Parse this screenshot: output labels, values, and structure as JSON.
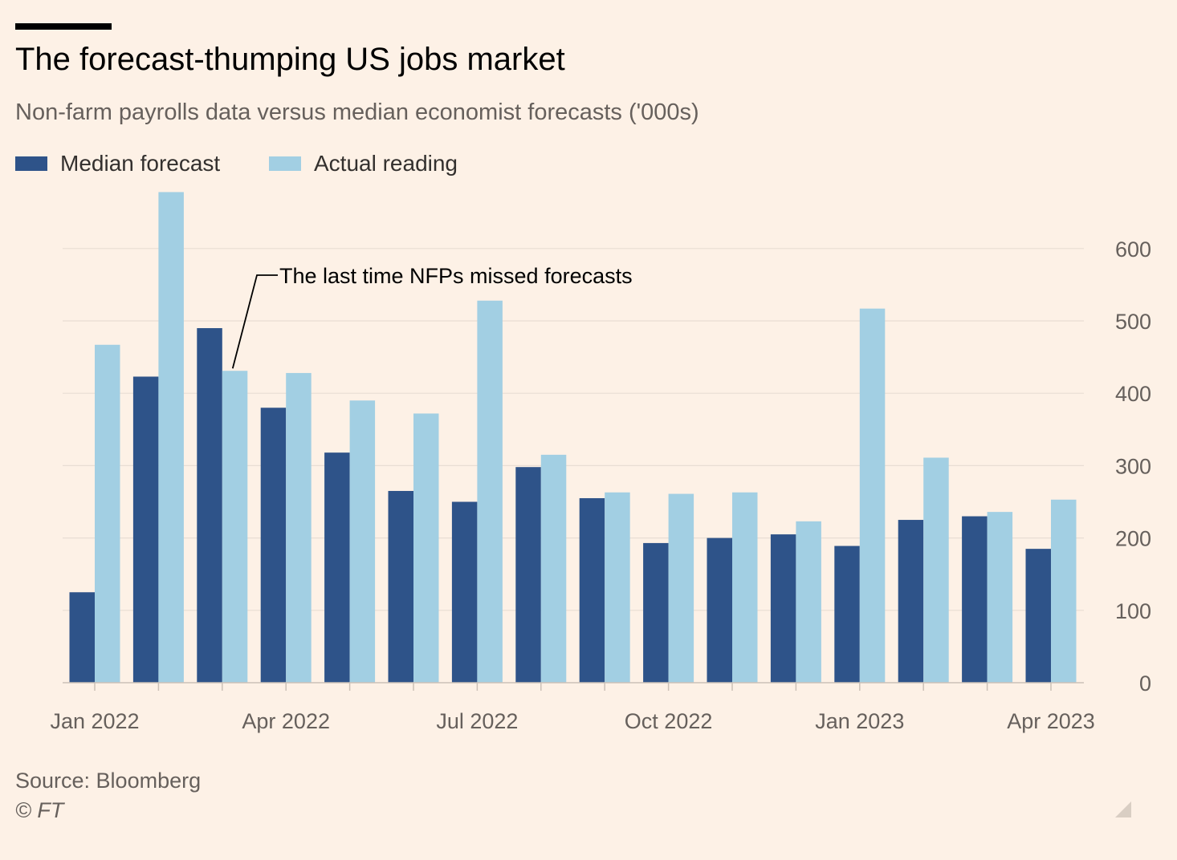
{
  "header": {
    "title": "The forecast-thumping US jobs market",
    "subtitle": "Non-farm payrolls data versus median economist forecasts ('000s)"
  },
  "legend": {
    "items": [
      {
        "label": "Median forecast",
        "color": "#2e5389"
      },
      {
        "label": "Actual reading",
        "color": "#a2cfe3"
      }
    ]
  },
  "footer": {
    "source": "Source: Bloomberg",
    "copyright": "© FT"
  },
  "chart_data": {
    "type": "bar",
    "title": "The forecast-thumping US jobs market",
    "subtitle": "Non-farm payrolls data versus median economist forecasts ('000s)",
    "categories": [
      "Jan 2022",
      "Feb 2022",
      "Mar 2022",
      "Apr 2022",
      "May 2022",
      "Jun 2022",
      "Jul 2022",
      "Aug 2022",
      "Sep 2022",
      "Oct 2022",
      "Nov 2022",
      "Dec 2022",
      "Jan 2023",
      "Feb 2023",
      "Mar 2023",
      "Apr 2023"
    ],
    "series": [
      {
        "name": "Median forecast",
        "color": "#2e5389",
        "values": [
          125,
          423,
          490,
          380,
          318,
          265,
          250,
          298,
          255,
          193,
          200,
          205,
          189,
          225,
          230,
          185
        ]
      },
      {
        "name": "Actual reading",
        "color": "#a2cfe3",
        "values": [
          467,
          678,
          431,
          428,
          390,
          372,
          528,
          315,
          263,
          261,
          263,
          223,
          517,
          311,
          236,
          253
        ]
      }
    ],
    "x_tick_labels": [
      "Jan 2022",
      "Apr 2022",
      "Jul 2022",
      "Oct 2022",
      "Jan 2023",
      "Apr 2023"
    ],
    "y_ticks": [
      0,
      100,
      200,
      300,
      400,
      500,
      600
    ],
    "ylim": [
      0,
      680
    ],
    "xlabel": "",
    "ylabel": "",
    "y_axis_side": "right",
    "grid": true,
    "legend_position": "top-left",
    "annotations": [
      {
        "text": "The last time NFPs missed forecasts",
        "category": "Mar 2022",
        "series": "Actual reading"
      }
    ]
  }
}
